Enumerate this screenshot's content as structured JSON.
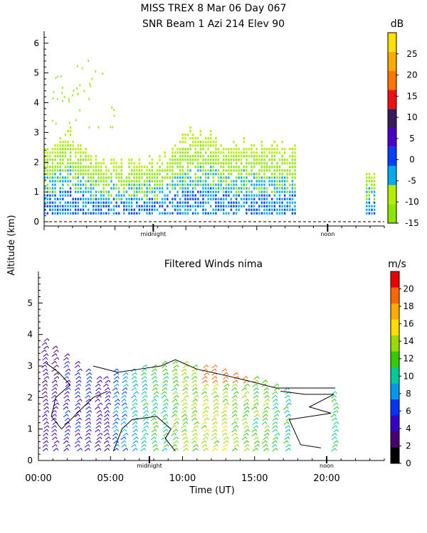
{
  "figure": {
    "title_line1": "MISS TREX   8 Mar 06 Day 067",
    "title_line2": "SNR Beam 1 Azi 214 Elev 90",
    "ylabel": "Altitude (km)"
  },
  "chart_data": [
    {
      "type": "heatmap",
      "title": "SNR Beam 1 Azi 214 Elev 90",
      "ylim": [
        0,
        6.4
      ],
      "xlim": [
        0,
        24
      ],
      "yticks": [
        "0",
        "1",
        "2",
        "3",
        "4",
        "5",
        "6"
      ],
      "x_annotations": [
        {
          "x": 7.7,
          "label": "midnight"
        },
        {
          "x": 20.0,
          "label": "noon"
        }
      ],
      "colorbar": {
        "unit": "dB",
        "ticks": [
          "-15",
          "-10",
          "-5",
          "0",
          "5",
          "10",
          "15",
          "20",
          "25"
        ],
        "range": [
          -15,
          30
        ],
        "colors": [
          "#8ce600",
          "#b4ee00",
          "#00aaee",
          "#0040ff",
          "#4a00cc",
          "#3a1a5a",
          "#ee1111",
          "#ff7700",
          "#ffaa00",
          "#ffe000"
        ]
      },
      "data_coverage": [
        {
          "x_start": 0.0,
          "x_end": 17.8,
          "z_top_km": [
            2.4,
            3.0,
            2.6,
            2.1,
            2.0,
            1.9,
            1.9,
            2.0,
            2.1,
            2.6,
            3.0,
            2.9,
            2.6,
            2.6,
            2.5,
            2.5,
            2.4,
            2.3
          ]
        },
        {
          "x_start": 22.7,
          "x_end": 23.3,
          "z_top_km": [
            1.8
          ]
        }
      ]
    },
    {
      "type": "scatter",
      "title": "Filtered Winds nima",
      "xlabel": "Time (UT)",
      "ylim": [
        0,
        6
      ],
      "xlim": [
        0,
        24
      ],
      "xticks": [
        "00:00",
        "05:00",
        "10:00",
        "15:00",
        "20:00"
      ],
      "yticks": [
        "0",
        "1",
        "2",
        "3",
        "4",
        "5"
      ],
      "x_annotations": [
        {
          "x": 7.7,
          "label": "midnight"
        },
        {
          "x": 20.0,
          "label": "noon"
        }
      ],
      "colorbar": {
        "unit": "m/s",
        "ticks": [
          "0",
          "2",
          "4",
          "6",
          "8",
          "10",
          "12",
          "14",
          "16",
          "18",
          "20"
        ],
        "range": [
          0,
          22
        ],
        "colors": [
          "#000000",
          "#4a0070",
          "#3300cc",
          "#0033ff",
          "#0099ee",
          "#00cc99",
          "#33cc00",
          "#99dd00",
          "#ffdd00",
          "#ffaa00",
          "#ff6600",
          "#ee0000"
        ]
      },
      "wind_columns": [
        {
          "x": 0.3,
          "top": 3.8,
          "speed": 4
        },
        {
          "x": 1.0,
          "top": 3.6,
          "speed": 4
        },
        {
          "x": 1.8,
          "top": 3.4,
          "speed": 5
        },
        {
          "x": 2.6,
          "top": 3.1,
          "speed": 5
        },
        {
          "x": 3.3,
          "top": 2.9,
          "speed": 5
        },
        {
          "x": 4.0,
          "top": 2.7,
          "speed": 4
        },
        {
          "x": 4.6,
          "top": 2.6,
          "speed": 4
        },
        {
          "x": 5.2,
          "top": 2.9,
          "speed": 7
        },
        {
          "x": 5.8,
          "top": 2.8,
          "speed": 8
        },
        {
          "x": 6.5,
          "top": 2.9,
          "speed": 9
        },
        {
          "x": 7.2,
          "top": 3.0,
          "speed": 10
        },
        {
          "x": 7.9,
          "top": 3.0,
          "speed": 11
        },
        {
          "x": 8.6,
          "top": 3.1,
          "speed": 11
        },
        {
          "x": 9.3,
          "top": 3.1,
          "speed": 12
        },
        {
          "x": 10.0,
          "top": 3.1,
          "speed": 13
        },
        {
          "x": 10.7,
          "top": 3.0,
          "speed": 13
        },
        {
          "x": 11.4,
          "top": 3.0,
          "speed": 14
        },
        {
          "x": 12.1,
          "top": 3.0,
          "speed": 14
        },
        {
          "x": 12.8,
          "top": 2.9,
          "speed": 14
        },
        {
          "x": 13.5,
          "top": 2.8,
          "speed": 13
        },
        {
          "x": 14.2,
          "top": 2.7,
          "speed": 13
        },
        {
          "x": 14.9,
          "top": 2.6,
          "speed": 12
        },
        {
          "x": 15.6,
          "top": 2.5,
          "speed": 12
        },
        {
          "x": 16.3,
          "top": 2.4,
          "speed": 11
        },
        {
          "x": 17.1,
          "top": 2.3,
          "speed": 10
        },
        {
          "x": 20.4,
          "top": 2.2,
          "speed": 11
        }
      ],
      "red_upper_region": {
        "x_start": 11.0,
        "x_end": 14.8,
        "alt_min": 2.4,
        "speed": 19
      }
    }
  ]
}
